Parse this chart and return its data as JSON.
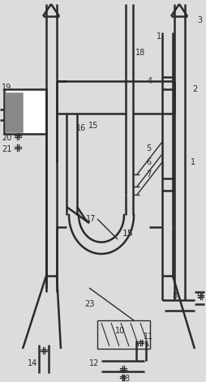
{
  "bg_color": "#dcdcdc",
  "line_color": "#2a2a2a",
  "text_color": "#2a2a2a",
  "figsize": [
    2.55,
    4.71
  ],
  "dpi": 100
}
